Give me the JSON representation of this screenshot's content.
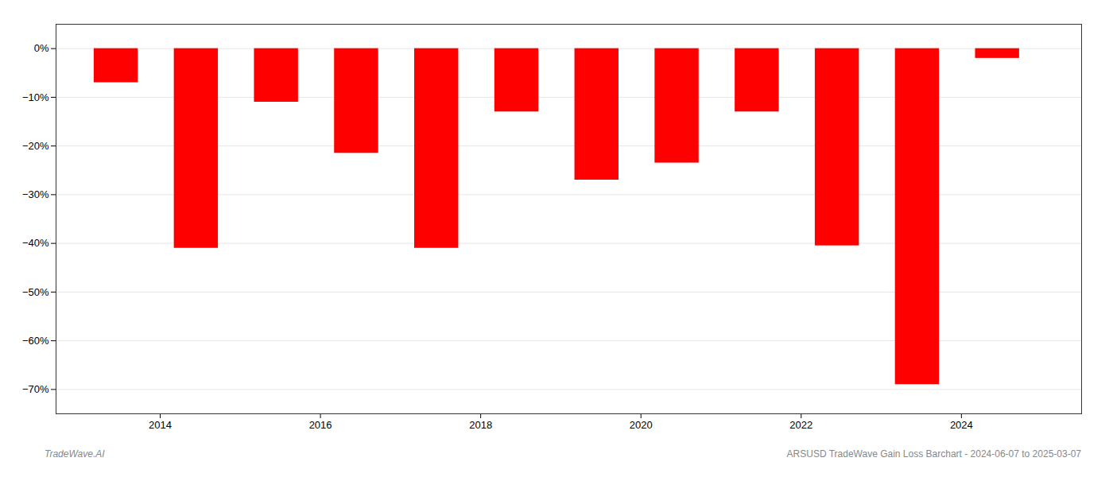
{
  "chart_data": {
    "type": "bar",
    "x": [
      2013.45,
      2014.45,
      2015.45,
      2016.45,
      2017.45,
      2018.45,
      2019.45,
      2020.45,
      2021.45,
      2022.45,
      2023.45,
      2024.45
    ],
    "values": [
      -7.0,
      -41.0,
      -11.0,
      -21.5,
      -41.0,
      -13.0,
      -27.0,
      -23.5,
      -13.0,
      -40.5,
      -69.0,
      -2.0
    ],
    "color": "#ff0000",
    "xlim": [
      2012.7,
      2025.5
    ],
    "xticks": [
      2014,
      2016,
      2018,
      2020,
      2022,
      2024
    ],
    "ylim": [
      -75,
      5
    ],
    "yticks": [
      {
        "value": 0,
        "label": "0%"
      },
      {
        "value": -10,
        "label": "−10%"
      },
      {
        "value": -20,
        "label": "−20%"
      },
      {
        "value": -30,
        "label": "−30%"
      },
      {
        "value": -40,
        "label": "−40%"
      },
      {
        "value": -50,
        "label": "−50%"
      },
      {
        "value": -60,
        "label": "−60%"
      },
      {
        "value": -70,
        "label": "−70%"
      }
    ],
    "grid": true,
    "annotations": [
      "TradeWave.AI",
      "ARSUSD TradeWave Gain Loss Barchart - 2024-06-07 to 2025-03-07"
    ]
  }
}
